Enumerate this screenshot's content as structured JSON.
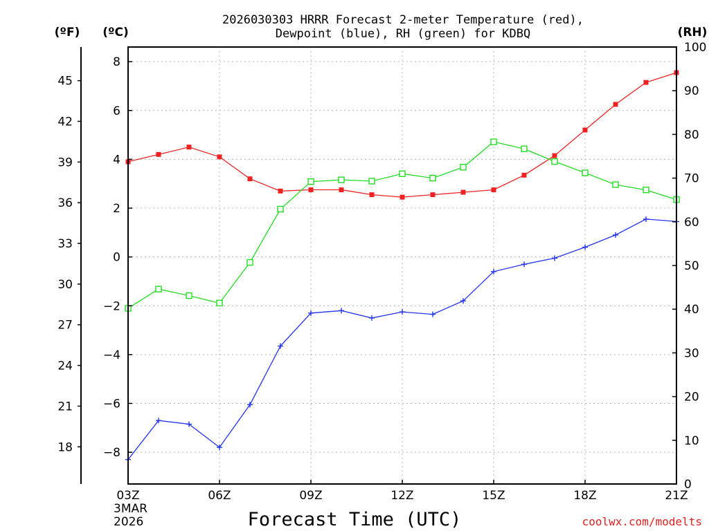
{
  "chart_data": {
    "type": "line",
    "title_line1": "2026030303 HRRR Forecast 2-meter Temperature (red),",
    "title_line2": "Dewpoint (blue), RH (green) for KDBQ",
    "xlabel": "Forecast Time (UTC)",
    "date_line1": "3MAR",
    "date_line2": "2026",
    "credit": "coolwx.com/modelts",
    "unit_f": "(ºF)",
    "unit_c": "(ºC)",
    "unit_rh": "(RH)",
    "x": [
      3,
      4,
      5,
      6,
      7,
      8,
      9,
      10,
      11,
      12,
      13,
      14,
      15,
      16,
      17,
      18,
      19,
      20,
      21
    ],
    "xlim": [
      3,
      21
    ],
    "x_ticks": [
      {
        "value": 3,
        "label": "03Z"
      },
      {
        "value": 6,
        "label": "06Z"
      },
      {
        "value": 9,
        "label": "09Z"
      },
      {
        "value": 12,
        "label": "12Z"
      },
      {
        "value": 15,
        "label": "15Z"
      },
      {
        "value": 18,
        "label": "18Z"
      },
      {
        "value": 21,
        "label": "21Z"
      }
    ],
    "ylim_c": [
      -9.3,
      8.6
    ],
    "y_ticks_c": [
      {
        "value": 8,
        "label": "8"
      },
      {
        "value": 6,
        "label": "6"
      },
      {
        "value": 4,
        "label": "4"
      },
      {
        "value": 2,
        "label": "2"
      },
      {
        "value": 0,
        "label": "0"
      },
      {
        "value": -2,
        "label": "−2"
      },
      {
        "value": -4,
        "label": "−4"
      },
      {
        "value": -6,
        "label": "−6"
      },
      {
        "value": -8,
        "label": "−8"
      }
    ],
    "y_ticks_f": [
      {
        "value": 45,
        "label": "45"
      },
      {
        "value": 42,
        "label": "42"
      },
      {
        "value": 39,
        "label": "39"
      },
      {
        "value": 36,
        "label": "36"
      },
      {
        "value": 33,
        "label": "33"
      },
      {
        "value": 30,
        "label": "30"
      },
      {
        "value": 27,
        "label": "27"
      },
      {
        "value": 24,
        "label": "24"
      },
      {
        "value": 21,
        "label": "21"
      },
      {
        "value": 18,
        "label": "18"
      }
    ],
    "ylim_rh": [
      0,
      100
    ],
    "y_ticks_rh": [
      {
        "value": 100,
        "label": "100"
      },
      {
        "value": 90,
        "label": "90"
      },
      {
        "value": 80,
        "label": "80"
      },
      {
        "value": 70,
        "label": "70"
      },
      {
        "value": 60,
        "label": "60"
      },
      {
        "value": 50,
        "label": "50"
      },
      {
        "value": 40,
        "label": "40"
      },
      {
        "value": 30,
        "label": "30"
      },
      {
        "value": 20,
        "label": "20"
      },
      {
        "value": 10,
        "label": "10"
      },
      {
        "value": 0,
        "label": "0"
      }
    ],
    "series": [
      {
        "name": "Temperature",
        "color": "#ee2222",
        "marker": "filled-square",
        "axis": "c",
        "values": [
          3.9,
          4.2,
          4.5,
          4.1,
          3.2,
          2.7,
          2.75,
          2.75,
          2.55,
          2.45,
          2.55,
          2.65,
          2.75,
          3.35,
          4.15,
          5.2,
          6.25,
          7.15,
          7.55
        ]
      },
      {
        "name": "Dewpoint",
        "color": "#2233ee",
        "marker": "plus",
        "axis": "c",
        "values": [
          -8.3,
          -6.7,
          -6.85,
          -7.8,
          -6.05,
          -3.65,
          -2.3,
          -2.2,
          -2.5,
          -2.25,
          -2.35,
          -1.8,
          -0.6,
          -0.3,
          -0.05,
          0.4,
          0.9,
          1.55,
          1.45
        ]
      },
      {
        "name": "RH",
        "color": "#22dd22",
        "marker": "open-square",
        "axis": "rh",
        "values": [
          40.2,
          44.6,
          43.1,
          41.4,
          50.7,
          62.9,
          69.2,
          69.6,
          69.3,
          71.0,
          70.0,
          72.5,
          78.3,
          76.7,
          73.8,
          71.2,
          68.5,
          67.3,
          65.1
        ]
      }
    ]
  }
}
